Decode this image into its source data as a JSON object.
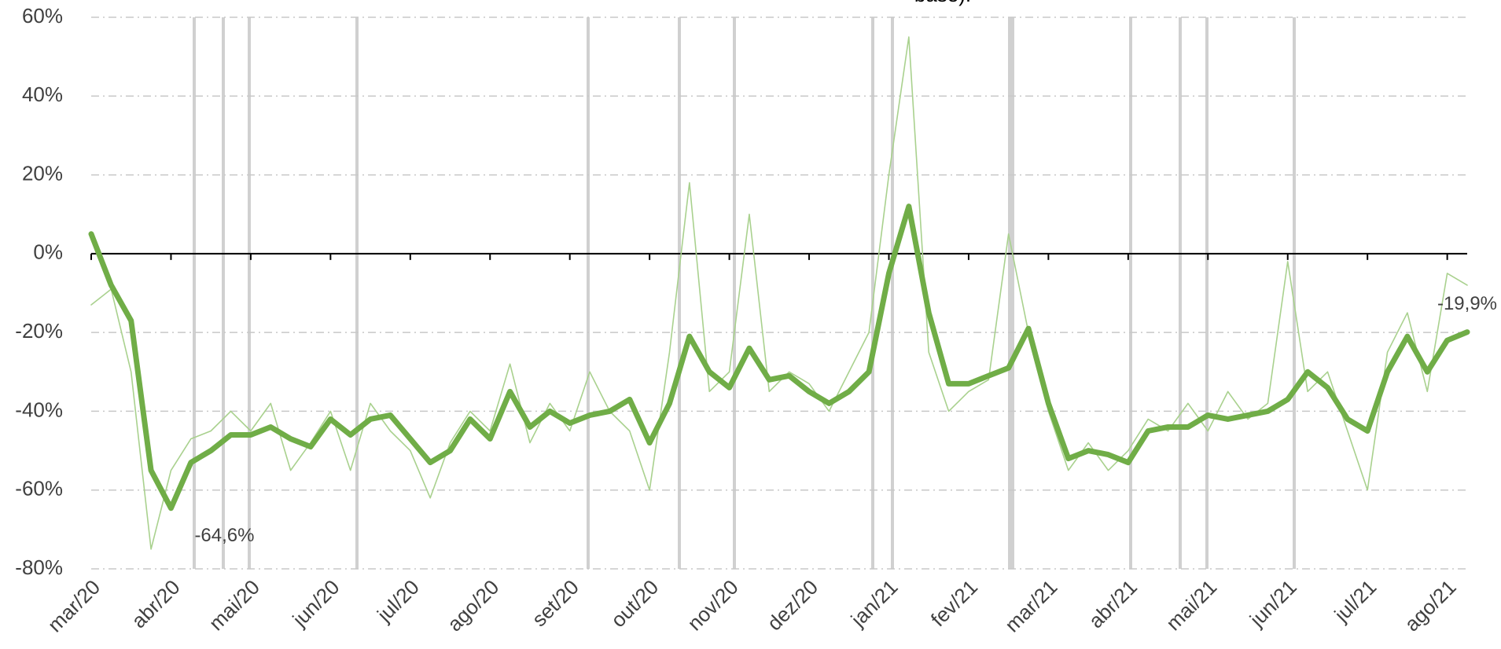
{
  "chart_data": {
    "type": "line",
    "title": "base).",
    "categories": [
      "mar/20",
      null,
      null,
      null,
      "abr/20",
      null,
      null,
      null,
      "mai/20",
      null,
      null,
      null,
      "jun/20",
      null,
      null,
      null,
      "jul/20",
      null,
      null,
      null,
      "ago/20",
      null,
      null,
      null,
      "set/20",
      null,
      null,
      null,
      "out/20",
      null,
      null,
      null,
      "nov/20",
      null,
      null,
      null,
      "dez/20",
      null,
      null,
      null,
      "jan/21",
      null,
      null,
      null,
      "fev/21",
      null,
      null,
      null,
      "mar/21",
      null,
      null,
      null,
      "abr/21",
      null,
      null,
      null,
      "mai/21",
      null,
      null,
      null,
      "jun/21",
      null,
      null,
      null,
      "jul/21",
      null,
      null,
      null,
      "ago/21",
      null
    ],
    "series": [
      {
        "color": "#a9d18e",
        "width": 1.6,
        "values": [
          -13,
          -9,
          -30,
          -75,
          -55,
          -47,
          -45,
          -40,
          -45,
          -38,
          -55,
          -48,
          -40,
          -55,
          -38,
          -45,
          -50,
          -62,
          -48,
          -40,
          -45,
          -28,
          -48,
          -38,
          -45,
          -30,
          -40,
          -45,
          -60,
          -25,
          18,
          -35,
          -30,
          10,
          -35,
          -30,
          -33,
          -40,
          -30,
          -20,
          20,
          55,
          -25,
          -40,
          -35,
          -32,
          5,
          -20,
          -40,
          -55,
          -48,
          -55,
          -50,
          -42,
          -45,
          -38,
          -45,
          -35,
          -42,
          -38,
          -2,
          -35,
          -30,
          -45,
          -60,
          -25,
          -15,
          -35,
          -5,
          -8
        ]
      },
      {
        "color": "#70ad47",
        "width": 7,
        "values": [
          5,
          -8,
          -17,
          -55,
          -64.6,
          -53,
          -50,
          -46,
          -46,
          -44,
          -47,
          -49,
          -42,
          -46,
          -42,
          -41,
          -47,
          -53,
          -50,
          -42,
          -47,
          -35,
          -44,
          -40,
          -43,
          -41,
          -40,
          -37,
          -48,
          -38,
          -21,
          -30,
          -34,
          -24,
          -32,
          -31,
          -35,
          -38,
          -35,
          -30,
          -5,
          12,
          -15,
          -33,
          -33,
          -31,
          -29,
          -19,
          -38,
          -52,
          -50,
          -51,
          -53,
          -45,
          -44,
          -44,
          -41,
          -42,
          -41,
          -40,
          -37,
          -30,
          -34,
          -42,
          -45,
          -30,
          -21,
          -30,
          -22,
          -19.9
        ],
        "value_labels": [
          null,
          null,
          null,
          null,
          "-64,6%",
          null,
          null,
          null,
          null,
          null,
          null,
          null,
          null,
          null,
          null,
          null,
          null,
          null,
          null,
          null,
          null,
          null,
          null,
          null,
          null,
          null,
          null,
          null,
          null,
          null,
          null,
          null,
          null,
          null,
          null,
          null,
          null,
          null,
          null,
          null,
          null,
          null,
          null,
          null,
          null,
          null,
          null,
          null,
          null,
          null,
          null,
          null,
          null,
          null,
          null,
          null,
          null,
          null,
          null,
          null,
          null,
          null,
          null,
          null,
          null,
          null,
          null,
          null,
          null,
          "-19,9%"
        ]
      }
    ],
    "ylim": [
      -80,
      60
    ],
    "yticks": [
      {
        "value": -80,
        "label": "-80%"
      },
      {
        "value": -60,
        "label": "-60%"
      },
      {
        "value": -40,
        "label": "-40%"
      },
      {
        "value": -20,
        "label": "-20%"
      },
      {
        "value": 0,
        "label": "0%"
      },
      {
        "value": 20,
        "label": "20%"
      },
      {
        "value": 40,
        "label": "40%"
      },
      {
        "value": 60,
        "label": "60%"
      }
    ],
    "grid": true
  }
}
